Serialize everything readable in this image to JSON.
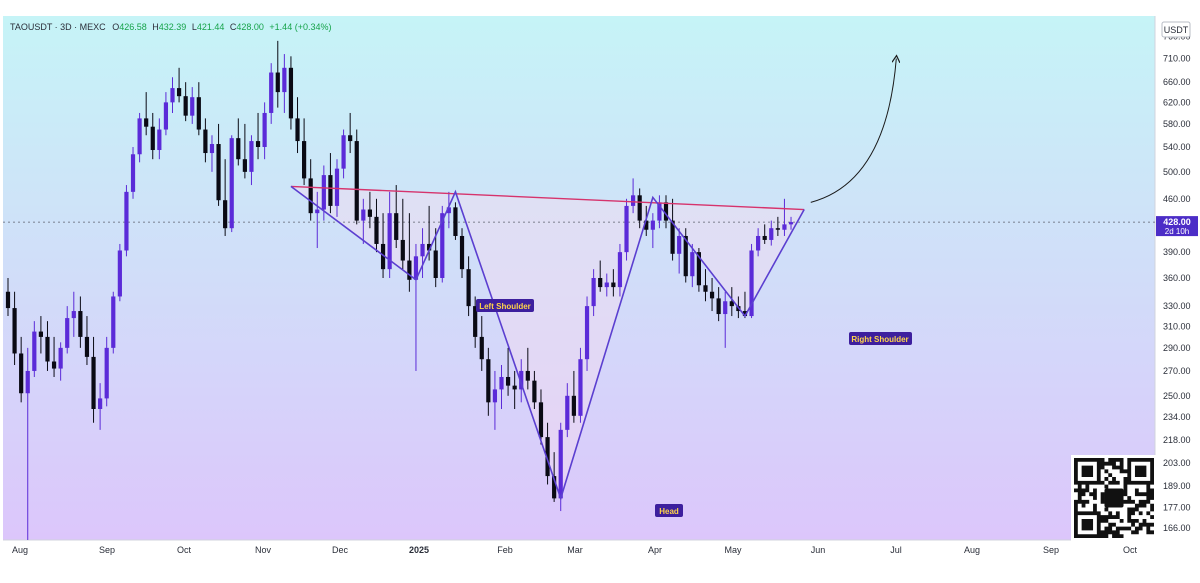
{
  "header": {
    "symbol": "TAOUSDT · 3D · MEXC",
    "open_label": "O",
    "open": "426.58",
    "high_label": "H",
    "high": "432.39",
    "low_label": "L",
    "low": "421.44",
    "close_label": "C",
    "close": "428.00",
    "change": "+1.44 (+0.34%)"
  },
  "currency_badge": "USDT",
  "price_tag": {
    "price": "428.00",
    "countdown": "2d 10h"
  },
  "colors": {
    "bull": "#5b2bd8",
    "bear": "#0a0a14",
    "neckline": "#d6336c",
    "pattern": "#5b3fd0",
    "label_bg": "#3d1f9e",
    "label_text": "#ffd54a",
    "bg_top": "#c6f4f7",
    "bg_bottom": "#dcc6fb"
  },
  "annotations": {
    "left_shoulder": "Left Shoulder",
    "head": "Head",
    "right_shoulder": "Right Shoulder"
  },
  "chart_data": {
    "type": "candlestick",
    "y_scale": "log",
    "ylim": [
      160,
      810
    ],
    "y_ticks": [
      "760.00",
      "710.00",
      "660.00",
      "620.00",
      "580.00",
      "540.00",
      "500.00",
      "460.00",
      "390.00",
      "360.00",
      "330.00",
      "310.00",
      "290.00",
      "270.00",
      "250.00",
      "234.00",
      "218.00",
      "203.00",
      "189.00",
      "177.00",
      "166.00"
    ],
    "x_ticks": [
      "Aug",
      "Sep",
      "Oct",
      "Nov",
      "Dec",
      "2025",
      "Feb",
      "Mar",
      "Apr",
      "May",
      "Jun",
      "Jul",
      "Aug",
      "Sep",
      "Oct"
    ],
    "current_price": 428.0,
    "candles": [
      [
        345,
        360,
        320,
        328
      ],
      [
        328,
        345,
        275,
        285
      ],
      [
        285,
        300,
        245,
        252
      ],
      [
        252,
        290,
        160,
        270
      ],
      [
        270,
        315,
        265,
        305
      ],
      [
        305,
        320,
        285,
        300
      ],
      [
        300,
        315,
        270,
        278
      ],
      [
        278,
        300,
        265,
        272
      ],
      [
        272,
        295,
        262,
        290
      ],
      [
        290,
        330,
        285,
        318
      ],
      [
        318,
        345,
        300,
        325
      ],
      [
        325,
        340,
        290,
        300
      ],
      [
        300,
        320,
        275,
        282
      ],
      [
        282,
        300,
        230,
        240
      ],
      [
        240,
        260,
        225,
        248
      ],
      [
        248,
        300,
        242,
        290
      ],
      [
        290,
        345,
        285,
        340
      ],
      [
        340,
        400,
        335,
        392
      ],
      [
        392,
        480,
        385,
        470
      ],
      [
        470,
        540,
        460,
        528
      ],
      [
        528,
        600,
        515,
        590
      ],
      [
        590,
        640,
        560,
        575
      ],
      [
        575,
        600,
        520,
        535
      ],
      [
        535,
        590,
        520,
        570
      ],
      [
        570,
        640,
        560,
        620
      ],
      [
        620,
        670,
        600,
        648
      ],
      [
        648,
        690,
        620,
        632
      ],
      [
        632,
        660,
        585,
        595
      ],
      [
        595,
        650,
        580,
        630
      ],
      [
        630,
        660,
        560,
        570
      ],
      [
        570,
        590,
        515,
        530
      ],
      [
        530,
        560,
        500,
        545
      ],
      [
        545,
        580,
        450,
        458
      ],
      [
        458,
        520,
        410,
        420
      ],
      [
        420,
        560,
        415,
        555
      ],
      [
        555,
        590,
        510,
        520
      ],
      [
        520,
        580,
        490,
        500
      ],
      [
        500,
        560,
        480,
        550
      ],
      [
        550,
        600,
        520,
        540
      ],
      [
        540,
        620,
        520,
        600
      ],
      [
        600,
        700,
        580,
        680
      ],
      [
        680,
        750,
        610,
        640
      ],
      [
        640,
        720,
        600,
        690
      ],
      [
        690,
        715,
        570,
        590
      ],
      [
        590,
        630,
        530,
        550
      ],
      [
        550,
        590,
        480,
        490
      ],
      [
        490,
        520,
        430,
        440
      ],
      [
        440,
        470,
        395,
        445
      ],
      [
        445,
        510,
        430,
        495
      ],
      [
        495,
        530,
        440,
        450
      ],
      [
        450,
        520,
        435,
        505
      ],
      [
        505,
        570,
        490,
        560
      ],
      [
        560,
        600,
        530,
        550
      ],
      [
        550,
        570,
        425,
        430
      ],
      [
        430,
        460,
        400,
        445
      ],
      [
        445,
        470,
        420,
        435
      ],
      [
        435,
        460,
        390,
        400
      ],
      [
        400,
        440,
        360,
        370
      ],
      [
        370,
        470,
        360,
        440
      ],
      [
        440,
        480,
        395,
        405
      ],
      [
        405,
        460,
        370,
        380
      ],
      [
        380,
        440,
        345,
        358
      ],
      [
        358,
        400,
        270,
        385
      ],
      [
        385,
        420,
        360,
        400
      ],
      [
        400,
        450,
        380,
        392
      ],
      [
        392,
        420,
        350,
        360
      ],
      [
        360,
        450,
        355,
        440
      ],
      [
        440,
        470,
        420,
        448
      ],
      [
        448,
        455,
        405,
        410
      ],
      [
        410,
        420,
        360,
        370
      ],
      [
        370,
        385,
        320,
        330
      ],
      [
        330,
        340,
        290,
        300
      ],
      [
        300,
        320,
        270,
        280
      ],
      [
        280,
        290,
        235,
        245
      ],
      [
        245,
        270,
        225,
        255
      ],
      [
        255,
        275,
        240,
        265
      ],
      [
        265,
        290,
        250,
        258
      ],
      [
        258,
        270,
        240,
        255
      ],
      [
        255,
        280,
        245,
        270
      ],
      [
        270,
        290,
        255,
        262
      ],
      [
        262,
        270,
        240,
        245
      ],
      [
        245,
        255,
        215,
        220
      ],
      [
        220,
        230,
        190,
        195
      ],
      [
        195,
        210,
        180,
        182
      ],
      [
        182,
        230,
        175,
        225
      ],
      [
        225,
        260,
        220,
        250
      ],
      [
        250,
        270,
        230,
        235
      ],
      [
        235,
        290,
        230,
        280
      ],
      [
        280,
        340,
        270,
        330
      ],
      [
        330,
        370,
        320,
        360
      ],
      [
        360,
        380,
        345,
        350
      ],
      [
        350,
        365,
        340,
        355
      ],
      [
        355,
        370,
        340,
        350
      ],
      [
        350,
        400,
        340,
        390
      ],
      [
        390,
        460,
        380,
        450
      ],
      [
        450,
        490,
        440,
        465
      ],
      [
        465,
        475,
        420,
        430
      ],
      [
        430,
        450,
        410,
        418
      ],
      [
        418,
        440,
        395,
        430
      ],
      [
        430,
        465,
        420,
        455
      ],
      [
        455,
        465,
        420,
        430
      ],
      [
        430,
        460,
        380,
        388
      ],
      [
        388,
        420,
        365,
        410
      ],
      [
        410,
        420,
        355,
        362
      ],
      [
        362,
        400,
        350,
        390
      ],
      [
        390,
        395,
        345,
        352
      ],
      [
        352,
        370,
        335,
        345
      ],
      [
        345,
        360,
        325,
        338
      ],
      [
        338,
        350,
        315,
        322
      ],
      [
        322,
        345,
        290,
        335
      ],
      [
        335,
        350,
        320,
        330
      ],
      [
        330,
        340,
        318,
        325
      ],
      [
        325,
        345,
        318,
        320
      ],
      [
        320,
        400,
        318,
        392
      ],
      [
        392,
        420,
        385,
        410
      ],
      [
        410,
        425,
        400,
        405
      ],
      [
        405,
        430,
        398,
        420
      ],
      [
        420,
        435,
        410,
        418
      ],
      [
        418,
        460,
        410,
        425
      ],
      [
        425,
        435,
        418,
        428
      ]
    ],
    "neckline": {
      "from": {
        "i": 43,
        "price": 478
      },
      "to": {
        "i": 121,
        "price": 445
      }
    },
    "pattern_points": [
      {
        "i": 43,
        "price": 478
      },
      {
        "i": 62,
        "price": 358
      },
      {
        "i": 68,
        "price": 470
      },
      {
        "i": 84,
        "price": 182
      },
      {
        "i": 98,
        "price": 462
      },
      {
        "i": 112,
        "price": 320
      },
      {
        "i": 121,
        "price": 445
      }
    ],
    "projection": {
      "from": {
        "i": 122,
        "price": 455
      },
      "to": {
        "i": 135,
        "price": 710
      }
    }
  }
}
